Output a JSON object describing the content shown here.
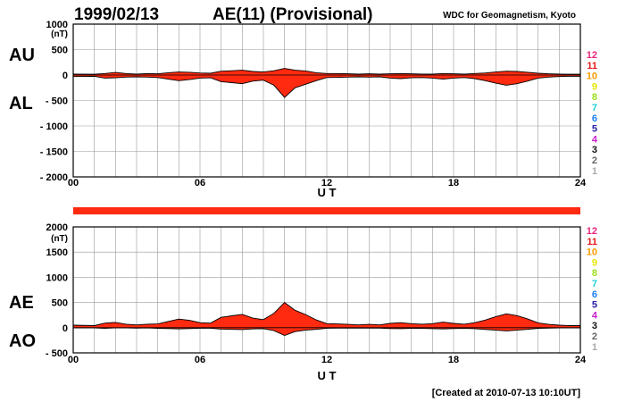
{
  "header": {
    "date": "1999/02/13",
    "title": "AE(11) (Provisional)",
    "source": "WDC for Geomagnetism, Kyoto"
  },
  "footer": {
    "created": "[Created at 2010-07-13 10:10UT]"
  },
  "colors": {
    "fill": "#ff2a10",
    "status_bar": "#ff2a10",
    "grid": "#9a9a9a",
    "axis": "#000000"
  },
  "station_count_legend": [
    {
      "label": "12",
      "color": "#e8257a"
    },
    {
      "label": "11",
      "color": "#e8181a"
    },
    {
      "label": "10",
      "color": "#f59a00"
    },
    {
      "label": "9",
      "color": "#e6e600"
    },
    {
      "label": "8",
      "color": "#9ade1c"
    },
    {
      "label": "7",
      "color": "#22d3d9"
    },
    {
      "label": "6",
      "color": "#1a7df0"
    },
    {
      "label": "5",
      "color": "#2a1ea8"
    },
    {
      "label": "4",
      "color": "#c81ec8"
    },
    {
      "label": "3",
      "color": "#111111"
    },
    {
      "label": "2",
      "color": "#666666"
    },
    {
      "label": "1",
      "color": "#aaaaaa"
    }
  ],
  "chart_data": [
    {
      "type": "area",
      "panel": "AU/AL",
      "labels": {
        "upper": "AU",
        "lower": "AL"
      },
      "unit": "(nT)",
      "xlabel": "U T",
      "xlim": [
        0,
        24
      ],
      "xticks": [
        "00",
        "06",
        "12",
        "18",
        "24"
      ],
      "ylim": [
        -2000,
        1000
      ],
      "yticks": [
        "1000",
        "500",
        "0",
        "- 500",
        "- 1000",
        "- 1500",
        "- 2000"
      ],
      "series": [
        {
          "name": "AU",
          "x": [
            0,
            1,
            1.5,
            2,
            2.5,
            3,
            3.5,
            4,
            4.5,
            5,
            5.5,
            6,
            6.5,
            7,
            7.5,
            8,
            8.5,
            9,
            9.5,
            10,
            10.5,
            11,
            11.5,
            12,
            12.5,
            13,
            13.5,
            14,
            14.5,
            15,
            15.5,
            16,
            16.5,
            17,
            17.5,
            18,
            18.5,
            19,
            19.5,
            20,
            20.5,
            21,
            21.5,
            22,
            22.5,
            23,
            23.5,
            24
          ],
          "values": [
            20,
            15,
            30,
            50,
            30,
            20,
            30,
            25,
            45,
            60,
            55,
            40,
            35,
            75,
            85,
            95,
            70,
            60,
            85,
            130,
            95,
            80,
            45,
            30,
            30,
            25,
            20,
            25,
            20,
            25,
            30,
            25,
            20,
            20,
            30,
            25,
            20,
            30,
            40,
            60,
            75,
            70,
            55,
            35,
            25,
            20,
            15,
            15
          ]
        },
        {
          "name": "AL",
          "x": [
            0,
            1,
            1.5,
            2,
            2.5,
            3,
            3.5,
            4,
            4.5,
            5,
            5.5,
            6,
            6.5,
            7,
            7.5,
            8,
            8.5,
            9,
            9.5,
            10,
            10.5,
            11,
            11.5,
            12,
            12.5,
            13,
            13.5,
            14,
            14.5,
            15,
            15.5,
            16,
            16.5,
            17,
            17.5,
            18,
            18.5,
            19,
            19.5,
            20,
            20.5,
            21,
            21.5,
            22,
            22.5,
            23,
            23.5,
            24
          ],
          "values": [
            -30,
            -25,
            -60,
            -55,
            -40,
            -35,
            -40,
            -50,
            -80,
            -110,
            -90,
            -60,
            -55,
            -130,
            -150,
            -170,
            -120,
            -100,
            -200,
            -440,
            -250,
            -180,
            -110,
            -50,
            -45,
            -40,
            -35,
            -40,
            -35,
            -60,
            -70,
            -55,
            -50,
            -60,
            -80,
            -60,
            -50,
            -70,
            -110,
            -160,
            -200,
            -170,
            -120,
            -60,
            -40,
            -30,
            -25,
            -25
          ]
        }
      ]
    },
    {
      "type": "area",
      "panel": "AE/AO",
      "labels": {
        "upper": "AE",
        "lower": "AO"
      },
      "unit": "(nT)",
      "xlabel": "U T",
      "xlim": [
        0,
        24
      ],
      "xticks": [
        "00",
        "06",
        "12",
        "18",
        "24"
      ],
      "ylim": [
        -500,
        2000
      ],
      "yticks": [
        "2000",
        "1500",
        "1000",
        "500",
        "0",
        "- 500"
      ],
      "series": [
        {
          "name": "AE",
          "x": [
            0,
            1,
            1.5,
            2,
            2.5,
            3,
            3.5,
            4,
            4.5,
            5,
            5.5,
            6,
            6.5,
            7,
            7.5,
            8,
            8.5,
            9,
            9.5,
            10,
            10.5,
            11,
            11.5,
            12,
            12.5,
            13,
            13.5,
            14,
            14.5,
            15,
            15.5,
            16,
            16.5,
            17,
            17.5,
            18,
            18.5,
            19,
            19.5,
            20,
            20.5,
            21,
            21.5,
            22,
            22.5,
            23,
            23.5,
            24
          ],
          "values": [
            50,
            40,
            90,
            105,
            70,
            55,
            70,
            75,
            125,
            170,
            145,
            100,
            90,
            205,
            235,
            265,
            190,
            160,
            285,
            500,
            345,
            260,
            155,
            80,
            75,
            65,
            55,
            65,
            55,
            85,
            100,
            80,
            70,
            80,
            110,
            85,
            70,
            100,
            150,
            220,
            275,
            240,
            175,
            95,
            65,
            50,
            40,
            40
          ]
        },
        {
          "name": "AO",
          "x": [
            0,
            1,
            1.5,
            2,
            2.5,
            3,
            3.5,
            4,
            4.5,
            5,
            5.5,
            6,
            6.5,
            7,
            7.5,
            8,
            8.5,
            9,
            9.5,
            10,
            10.5,
            11,
            11.5,
            12,
            12.5,
            13,
            13.5,
            14,
            14.5,
            15,
            15.5,
            16,
            16.5,
            17,
            17.5,
            18,
            18.5,
            19,
            19.5,
            20,
            20.5,
            21,
            21.5,
            22,
            22.5,
            23,
            23.5,
            24
          ],
          "values": [
            -5,
            -5,
            -15,
            -3,
            -5,
            -8,
            -5,
            -13,
            -18,
            -25,
            -18,
            -10,
            -10,
            -28,
            -33,
            -38,
            -25,
            -20,
            -58,
            -155,
            -78,
            -50,
            -33,
            -10,
            -8,
            -8,
            -8,
            -8,
            -8,
            -18,
            -20,
            -15,
            -15,
            -20,
            -25,
            -18,
            -15,
            -20,
            -35,
            -50,
            -63,
            -50,
            -33,
            -13,
            -8,
            -5,
            -5,
            -5
          ]
        }
      ]
    }
  ]
}
